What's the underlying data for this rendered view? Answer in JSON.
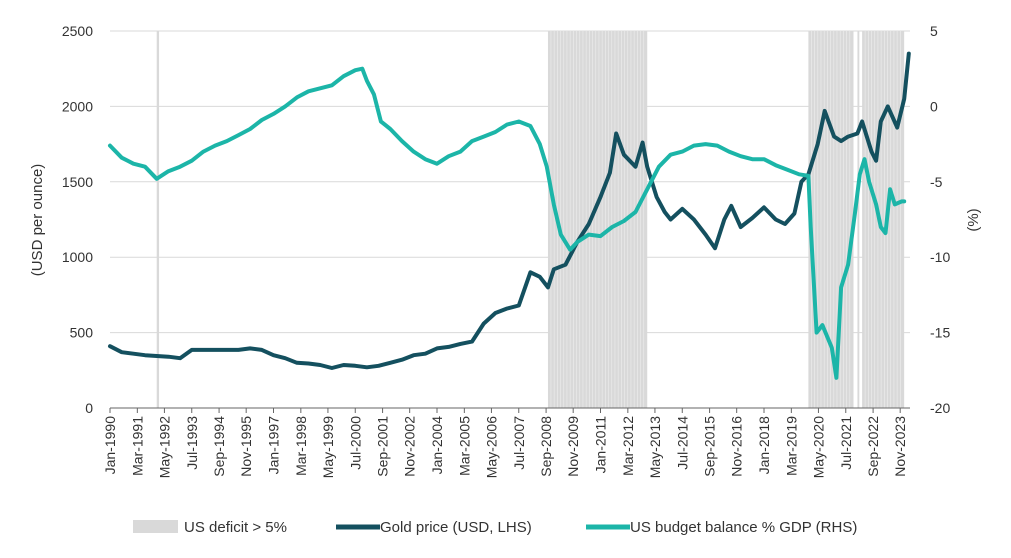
{
  "chart_data": {
    "type": "line",
    "title": "",
    "y_left": {
      "label": "(USD per ounce)",
      "range": [
        0,
        2500
      ],
      "ticks": [
        "0",
        "500",
        "1000",
        "1500",
        "2000",
        "2500"
      ]
    },
    "y_right": {
      "label": "(%)",
      "range": [
        -20,
        5
      ],
      "ticks": [
        "-20",
        "-15",
        "-10",
        "-5",
        "0",
        "5"
      ]
    },
    "x_range": [
      1990.0,
      2024.25
    ],
    "x_tick_labels": [
      "Jan-1990",
      "Mar-1991",
      "May-1992",
      "Jul-1993",
      "Sep-1994",
      "Nov-1995",
      "Jan-1997",
      "Mar-1998",
      "May-1999",
      "Jul-2000",
      "Sep-2001",
      "Nov-2002",
      "Jan-2004",
      "Mar-2005",
      "May-2006",
      "Jul-2007",
      "Sep-2008",
      "Nov-2009",
      "Jan-2011",
      "Mar-2012",
      "May-2013",
      "Jul-2014",
      "Sep-2015",
      "Nov-2016",
      "Jan-2018",
      "Mar-2019",
      "May-2020",
      "Jul-2021",
      "Sep-2022",
      "Nov-2023"
    ],
    "x_tick_values": [
      1990.0,
      1991.17,
      1992.33,
      1993.5,
      1994.67,
      1995.83,
      1997.0,
      1998.17,
      1999.33,
      2000.5,
      2001.67,
      2002.83,
      2004.0,
      2005.17,
      2006.33,
      2007.5,
      2008.67,
      2009.83,
      2011.0,
      2012.17,
      2013.33,
      2014.5,
      2015.67,
      2016.83,
      2018.0,
      2019.17,
      2020.33,
      2021.5,
      2022.67,
      2023.83
    ],
    "grid": "horizontal",
    "legend_position": "bottom",
    "shaded_periods": {
      "name": "US deficit > 5%",
      "color": "#d9d9d9",
      "periods": [
        [
          1992.0,
          1992.1
        ],
        [
          2008.75,
          2013.0
        ],
        [
          2019.9,
          2021.83
        ],
        [
          2022.0,
          2022.08
        ],
        [
          2022.2,
          2024.0
        ]
      ]
    },
    "series": [
      {
        "name": "Gold price (USD, LHS)",
        "axis": "left",
        "color": "#14505f",
        "points": [
          [
            1990.0,
            410
          ],
          [
            1990.5,
            370
          ],
          [
            1991.0,
            360
          ],
          [
            1991.5,
            350
          ],
          [
            1992.0,
            345
          ],
          [
            1992.5,
            340
          ],
          [
            1993.0,
            330
          ],
          [
            1993.5,
            385
          ],
          [
            1994.0,
            385
          ],
          [
            1994.5,
            385
          ],
          [
            1995.0,
            385
          ],
          [
            1995.5,
            385
          ],
          [
            1996.0,
            395
          ],
          [
            1996.5,
            385
          ],
          [
            1997.0,
            350
          ],
          [
            1997.5,
            330
          ],
          [
            1998.0,
            300
          ],
          [
            1998.5,
            295
          ],
          [
            1999.0,
            285
          ],
          [
            1999.5,
            265
          ],
          [
            2000.0,
            285
          ],
          [
            2000.5,
            280
          ],
          [
            2001.0,
            270
          ],
          [
            2001.5,
            280
          ],
          [
            2002.0,
            300
          ],
          [
            2002.5,
            320
          ],
          [
            2003.0,
            350
          ],
          [
            2003.5,
            360
          ],
          [
            2004.0,
            395
          ],
          [
            2004.5,
            405
          ],
          [
            2005.0,
            425
          ],
          [
            2005.5,
            440
          ],
          [
            2006.0,
            560
          ],
          [
            2006.5,
            630
          ],
          [
            2007.0,
            660
          ],
          [
            2007.5,
            680
          ],
          [
            2008.0,
            900
          ],
          [
            2008.4,
            870
          ],
          [
            2008.75,
            800
          ],
          [
            2009.0,
            920
          ],
          [
            2009.5,
            950
          ],
          [
            2010.0,
            1100
          ],
          [
            2010.5,
            1220
          ],
          [
            2011.0,
            1400
          ],
          [
            2011.4,
            1560
          ],
          [
            2011.67,
            1820
          ],
          [
            2012.0,
            1680
          ],
          [
            2012.5,
            1600
          ],
          [
            2012.8,
            1760
          ],
          [
            2013.0,
            1600
          ],
          [
            2013.4,
            1400
          ],
          [
            2013.75,
            1300
          ],
          [
            2014.0,
            1250
          ],
          [
            2014.5,
            1320
          ],
          [
            2015.0,
            1250
          ],
          [
            2015.5,
            1150
          ],
          [
            2015.9,
            1060
          ],
          [
            2016.3,
            1250
          ],
          [
            2016.6,
            1340
          ],
          [
            2017.0,
            1200
          ],
          [
            2017.5,
            1260
          ],
          [
            2018.0,
            1330
          ],
          [
            2018.5,
            1250
          ],
          [
            2018.9,
            1220
          ],
          [
            2019.3,
            1290
          ],
          [
            2019.6,
            1500
          ],
          [
            2019.9,
            1550
          ],
          [
            2020.3,
            1750
          ],
          [
            2020.6,
            1970
          ],
          [
            2021.0,
            1800
          ],
          [
            2021.3,
            1770
          ],
          [
            2021.6,
            1800
          ],
          [
            2022.0,
            1820
          ],
          [
            2022.2,
            1900
          ],
          [
            2022.6,
            1700
          ],
          [
            2022.8,
            1640
          ],
          [
            2023.0,
            1900
          ],
          [
            2023.3,
            2000
          ],
          [
            2023.7,
            1860
          ],
          [
            2024.0,
            2050
          ],
          [
            2024.2,
            2350
          ]
        ]
      },
      {
        "name": "US budget balance % GDP (RHS)",
        "axis": "right",
        "color": "#1cb5a8",
        "points": [
          [
            1990.0,
            -2.6
          ],
          [
            1990.5,
            -3.4
          ],
          [
            1991.0,
            -3.8
          ],
          [
            1991.5,
            -4.0
          ],
          [
            1992.0,
            -4.8
          ],
          [
            1992.5,
            -4.3
          ],
          [
            1993.0,
            -4.0
          ],
          [
            1993.5,
            -3.6
          ],
          [
            1994.0,
            -3.0
          ],
          [
            1994.5,
            -2.6
          ],
          [
            1995.0,
            -2.3
          ],
          [
            1995.5,
            -1.9
          ],
          [
            1996.0,
            -1.5
          ],
          [
            1996.5,
            -0.9
          ],
          [
            1997.0,
            -0.5
          ],
          [
            1997.5,
            0.0
          ],
          [
            1998.0,
            0.6
          ],
          [
            1998.5,
            1.0
          ],
          [
            1999.0,
            1.2
          ],
          [
            1999.5,
            1.4
          ],
          [
            2000.0,
            2.0
          ],
          [
            2000.5,
            2.4
          ],
          [
            2000.8,
            2.5
          ],
          [
            2001.0,
            1.7
          ],
          [
            2001.3,
            0.8
          ],
          [
            2001.6,
            -1.0
          ],
          [
            2002.0,
            -1.5
          ],
          [
            2002.5,
            -2.3
          ],
          [
            2003.0,
            -3.0
          ],
          [
            2003.5,
            -3.5
          ],
          [
            2004.0,
            -3.8
          ],
          [
            2004.5,
            -3.3
          ],
          [
            2005.0,
            -3.0
          ],
          [
            2005.5,
            -2.3
          ],
          [
            2006.0,
            -2.0
          ],
          [
            2006.5,
            -1.7
          ],
          [
            2007.0,
            -1.2
          ],
          [
            2007.5,
            -1.0
          ],
          [
            2008.0,
            -1.3
          ],
          [
            2008.4,
            -2.5
          ],
          [
            2008.7,
            -4.0
          ],
          [
            2009.0,
            -6.5
          ],
          [
            2009.3,
            -8.5
          ],
          [
            2009.7,
            -9.5
          ],
          [
            2010.0,
            -9.0
          ],
          [
            2010.5,
            -8.5
          ],
          [
            2011.0,
            -8.6
          ],
          [
            2011.5,
            -8.0
          ],
          [
            2012.0,
            -7.6
          ],
          [
            2012.5,
            -7.0
          ],
          [
            2013.0,
            -5.5
          ],
          [
            2013.5,
            -4.0
          ],
          [
            2014.0,
            -3.2
          ],
          [
            2014.5,
            -3.0
          ],
          [
            2015.0,
            -2.6
          ],
          [
            2015.5,
            -2.5
          ],
          [
            2016.0,
            -2.6
          ],
          [
            2016.5,
            -3.0
          ],
          [
            2017.0,
            -3.3
          ],
          [
            2017.5,
            -3.5
          ],
          [
            2018.0,
            -3.5
          ],
          [
            2018.5,
            -3.9
          ],
          [
            2019.0,
            -4.2
          ],
          [
            2019.5,
            -4.5
          ],
          [
            2019.9,
            -4.6
          ],
          [
            2020.0,
            -8.0
          ],
          [
            2020.25,
            -15.0
          ],
          [
            2020.5,
            -14.5
          ],
          [
            2020.9,
            -16.0
          ],
          [
            2021.1,
            -18.0
          ],
          [
            2021.3,
            -12.0
          ],
          [
            2021.6,
            -10.5
          ],
          [
            2021.9,
            -7.0
          ],
          [
            2022.1,
            -4.5
          ],
          [
            2022.3,
            -3.5
          ],
          [
            2022.5,
            -5.0
          ],
          [
            2022.8,
            -6.5
          ],
          [
            2023.0,
            -8.0
          ],
          [
            2023.2,
            -8.4
          ],
          [
            2023.4,
            -5.5
          ],
          [
            2023.6,
            -6.5
          ],
          [
            2023.9,
            -6.3
          ],
          [
            2024.0,
            -6.3
          ]
        ]
      }
    ]
  }
}
